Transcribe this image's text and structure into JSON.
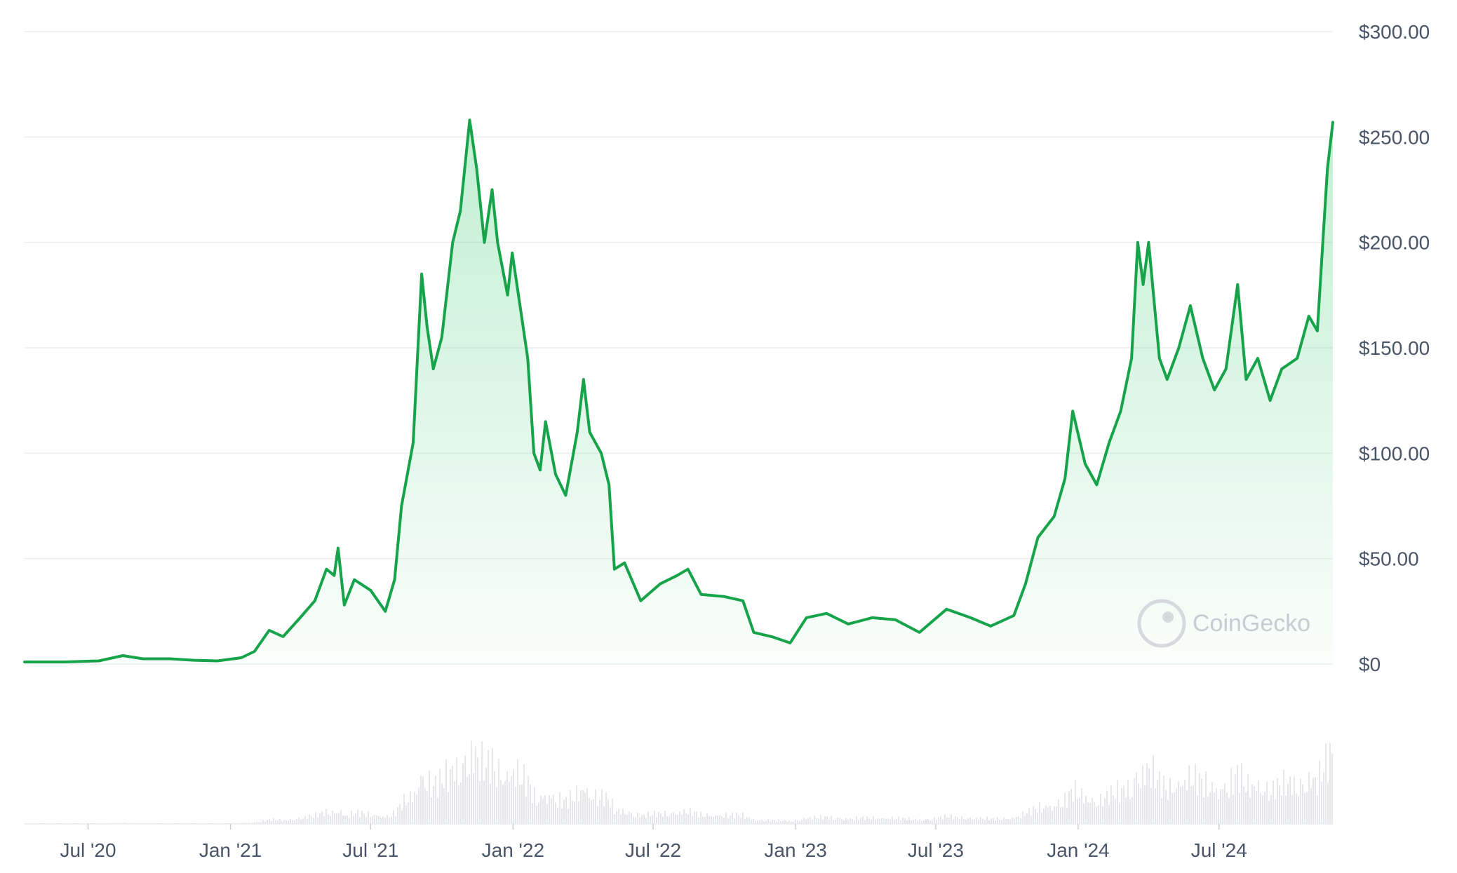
{
  "chart_data": {
    "type": "area",
    "y_ticks": [
      "$300.00",
      "$250.00",
      "$200.00",
      "$150.00",
      "$100.00",
      "$50.00",
      "$0"
    ],
    "y_tick_values": [
      300,
      250,
      200,
      150,
      100,
      50,
      0
    ],
    "ylim": [
      0,
      300
    ],
    "x_ticks": [
      "Jul '20",
      "Jan '21",
      "Jul '21",
      "Jan '22",
      "Jul '22",
      "Jan '23",
      "Jul '23",
      "Jan '24",
      "Jul '24"
    ],
    "x_tick_dates": [
      "2020-07-01",
      "2021-01-01",
      "2021-07-01",
      "2022-01-01",
      "2022-07-01",
      "2023-01-01",
      "2023-07-01",
      "2024-01-01",
      "2024-07-01"
    ],
    "xlim": [
      "2020-04-10",
      "2024-11-25"
    ],
    "grid": true,
    "line_color": "#16a34a",
    "fill_color": "#22c55e",
    "volume_color": "#e5e7eb",
    "watermark": "CoinGecko",
    "price_series": [
      [
        "2020-04-10",
        1.0
      ],
      [
        "2020-06-01",
        1.0
      ],
      [
        "2020-07-15",
        1.5
      ],
      [
        "2020-08-15",
        4.0
      ],
      [
        "2020-09-10",
        2.5
      ],
      [
        "2020-10-15",
        2.5
      ],
      [
        "2020-11-15",
        1.8
      ],
      [
        "2020-12-15",
        1.5
      ],
      [
        "2021-01-15",
        3.0
      ],
      [
        "2021-02-01",
        6.0
      ],
      [
        "2021-02-20",
        16.0
      ],
      [
        "2021-03-10",
        13.0
      ],
      [
        "2021-04-01",
        22.0
      ],
      [
        "2021-04-20",
        30.0
      ],
      [
        "2021-05-05",
        45.0
      ],
      [
        "2021-05-15",
        42.0
      ],
      [
        "2021-05-20",
        55.0
      ],
      [
        "2021-05-28",
        28.0
      ],
      [
        "2021-06-10",
        40.0
      ],
      [
        "2021-07-01",
        35.0
      ],
      [
        "2021-07-20",
        25.0
      ],
      [
        "2021-08-01",
        40.0
      ],
      [
        "2021-08-10",
        75.0
      ],
      [
        "2021-08-25",
        105.0
      ],
      [
        "2021-09-05",
        185.0
      ],
      [
        "2021-09-12",
        160.0
      ],
      [
        "2021-09-20",
        140.0
      ],
      [
        "2021-10-01",
        155.0
      ],
      [
        "2021-10-15",
        200.0
      ],
      [
        "2021-10-25",
        215.0
      ],
      [
        "2021-11-06",
        258.0
      ],
      [
        "2021-11-15",
        235.0
      ],
      [
        "2021-11-25",
        200.0
      ],
      [
        "2021-12-05",
        225.0
      ],
      [
        "2021-12-12",
        200.0
      ],
      [
        "2021-12-25",
        175.0
      ],
      [
        "2021-12-31",
        195.0
      ],
      [
        "2022-01-10",
        170.0
      ],
      [
        "2022-01-20",
        145.0
      ],
      [
        "2022-01-28",
        100.0
      ],
      [
        "2022-02-05",
        92.0
      ],
      [
        "2022-02-12",
        115.0
      ],
      [
        "2022-02-25",
        90.0
      ],
      [
        "2022-03-10",
        80.0
      ],
      [
        "2022-03-25",
        110.0
      ],
      [
        "2022-04-02",
        135.0
      ],
      [
        "2022-04-10",
        110.0
      ],
      [
        "2022-04-25",
        100.0
      ],
      [
        "2022-05-05",
        85.0
      ],
      [
        "2022-05-12",
        45.0
      ],
      [
        "2022-05-25",
        48.0
      ],
      [
        "2022-06-15",
        30.0
      ],
      [
        "2022-07-10",
        38.0
      ],
      [
        "2022-08-01",
        42.0
      ],
      [
        "2022-08-15",
        45.0
      ],
      [
        "2022-09-01",
        33.0
      ],
      [
        "2022-10-01",
        32.0
      ],
      [
        "2022-10-25",
        30.0
      ],
      [
        "2022-11-08",
        15.0
      ],
      [
        "2022-12-01",
        13.0
      ],
      [
        "2022-12-25",
        10.0
      ],
      [
        "2023-01-15",
        22.0
      ],
      [
        "2023-02-10",
        24.0
      ],
      [
        "2023-03-10",
        19.0
      ],
      [
        "2023-04-10",
        22.0
      ],
      [
        "2023-05-10",
        21.0
      ],
      [
        "2023-06-10",
        15.0
      ],
      [
        "2023-07-15",
        26.0
      ],
      [
        "2023-08-15",
        22.0
      ],
      [
        "2023-09-10",
        18.0
      ],
      [
        "2023-10-10",
        23.0
      ],
      [
        "2023-10-25",
        38.0
      ],
      [
        "2023-11-10",
        60.0
      ],
      [
        "2023-12-01",
        70.0
      ],
      [
        "2023-12-15",
        88.0
      ],
      [
        "2023-12-25",
        120.0
      ],
      [
        "2024-01-10",
        95.0
      ],
      [
        "2024-01-25",
        85.0
      ],
      [
        "2024-02-10",
        105.0
      ],
      [
        "2024-02-25",
        120.0
      ],
      [
        "2024-03-10",
        145.0
      ],
      [
        "2024-03-18",
        200.0
      ],
      [
        "2024-03-25",
        180.0
      ],
      [
        "2024-04-01",
        200.0
      ],
      [
        "2024-04-15",
        145.0
      ],
      [
        "2024-04-25",
        135.0
      ],
      [
        "2024-05-10",
        150.0
      ],
      [
        "2024-05-25",
        170.0
      ],
      [
        "2024-06-10",
        145.0
      ],
      [
        "2024-06-25",
        130.0
      ],
      [
        "2024-07-10",
        140.0
      ],
      [
        "2024-07-25",
        180.0
      ],
      [
        "2024-08-05",
        135.0
      ],
      [
        "2024-08-20",
        145.0
      ],
      [
        "2024-09-05",
        125.0
      ],
      [
        "2024-09-20",
        140.0
      ],
      [
        "2024-10-10",
        145.0
      ],
      [
        "2024-10-25",
        165.0
      ],
      [
        "2024-11-05",
        158.0
      ],
      [
        "2024-11-12",
        200.0
      ],
      [
        "2024-11-18",
        235.0
      ],
      [
        "2024-11-25",
        257.0
      ]
    ]
  }
}
